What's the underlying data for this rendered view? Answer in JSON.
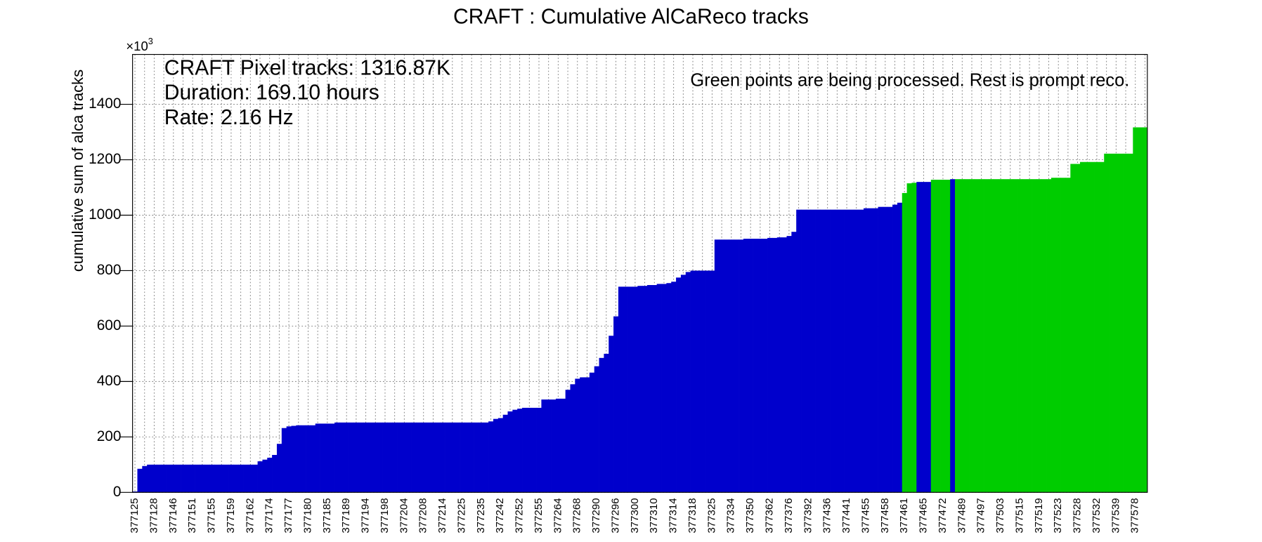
{
  "chart_data": {
    "type": "bar",
    "title": "CRAFT : Cumulative AlCaReco tracks",
    "y_label": "cumulative sum of alca tracks",
    "y_multiplier_base": "×10",
    "y_multiplier_power": "3",
    "annotations": [
      "CRAFT Pixel tracks: 1316.87K",
      "Duration: 169.10 hours",
      "Rate: 2.16 Hz"
    ],
    "note": "Green points are being processed. Rest is prompt reco.",
    "ylim": [
      0,
      1580
    ],
    "yticks": [
      0,
      200,
      400,
      600,
      800,
      1000,
      1200,
      1400
    ],
    "grid": true,
    "categories": [
      "377125",
      null,
      null,
      null,
      "377128",
      null,
      null,
      null,
      "377146",
      null,
      null,
      null,
      "377151",
      null,
      null,
      null,
      "377155",
      null,
      null,
      null,
      "377159",
      null,
      null,
      null,
      "377162",
      null,
      null,
      null,
      "377174",
      null,
      null,
      null,
      "377177",
      null,
      null,
      null,
      "377180",
      null,
      null,
      null,
      "377185",
      null,
      null,
      null,
      "377189",
      null,
      null,
      null,
      "377194",
      null,
      null,
      null,
      "377198",
      null,
      null,
      null,
      "377204",
      null,
      null,
      null,
      "377208",
      null,
      null,
      null,
      "377214",
      null,
      null,
      null,
      "377225",
      null,
      null,
      null,
      "377235",
      null,
      null,
      null,
      "377242",
      null,
      null,
      null,
      "377252",
      null,
      null,
      null,
      "377255",
      null,
      null,
      null,
      "377264",
      null,
      null,
      null,
      "377268",
      null,
      null,
      null,
      "377290",
      null,
      null,
      null,
      "377296",
      null,
      null,
      null,
      "377300",
      null,
      null,
      null,
      "377310",
      null,
      null,
      null,
      "377314",
      null,
      null,
      null,
      "377318",
      null,
      null,
      null,
      "377325",
      null,
      null,
      null,
      "377334",
      null,
      null,
      null,
      "377350",
      null,
      null,
      null,
      "377362",
      null,
      null,
      null,
      "377376",
      null,
      null,
      null,
      "377392",
      null,
      null,
      null,
      "377436",
      null,
      null,
      null,
      "377441",
      null,
      null,
      null,
      "377455",
      null,
      null,
      null,
      "377458",
      null,
      null,
      null,
      "377461",
      null,
      null,
      null,
      "377465",
      null,
      null,
      null,
      "377472",
      null,
      null,
      null,
      "377489",
      null,
      null,
      null,
      "377497",
      null,
      null,
      null,
      "377503",
      null,
      null,
      null,
      "377515",
      null,
      null,
      null,
      "377519",
      null,
      null,
      null,
      "377523",
      null,
      null,
      null,
      "377528",
      null,
      null,
      null,
      "377532",
      null,
      null,
      null,
      "377539",
      null,
      null,
      null,
      "377578",
      null,
      null
    ],
    "values": [
      3,
      85,
      95,
      100,
      100,
      100,
      100,
      100,
      100,
      100,
      100,
      100,
      100,
      100,
      100,
      100,
      100,
      100,
      100,
      100,
      100,
      100,
      100,
      100,
      100,
      100,
      112,
      118,
      125,
      135,
      175,
      232,
      238,
      240,
      242,
      242,
      242,
      242,
      248,
      248,
      248,
      248,
      252,
      252,
      252,
      252,
      252,
      252,
      252,
      252,
      252,
      252,
      252,
      252,
      252,
      252,
      252,
      252,
      252,
      252,
      252,
      252,
      252,
      252,
      252,
      252,
      252,
      252,
      252,
      252,
      252,
      252,
      252,
      252,
      256,
      265,
      268,
      280,
      292,
      298,
      302,
      305,
      305,
      305,
      305,
      335,
      335,
      335,
      338,
      338,
      370,
      390,
      410,
      415,
      415,
      432,
      455,
      485,
      500,
      565,
      635,
      742,
      742,
      742,
      742,
      745,
      745,
      748,
      748,
      752,
      752,
      755,
      760,
      775,
      785,
      795,
      800,
      800,
      800,
      800,
      800,
      912,
      912,
      912,
      912,
      912,
      912,
      915,
      915,
      915,
      915,
      915,
      918,
      918,
      920,
      920,
      925,
      940,
      1020,
      1020,
      1020,
      1020,
      1020,
      1020,
      1020,
      1020,
      1020,
      1020,
      1020,
      1020,
      1020,
      1020,
      1025,
      1025,
      1025,
      1030,
      1030,
      1030,
      1038,
      1045,
      1080,
      1115,
      1117,
      1120,
      1120,
      1120,
      1128,
      1128,
      1128,
      1128,
      1130,
      1130,
      1130,
      1130,
      1130,
      1130,
      1130,
      1130,
      1130,
      1130,
      1130,
      1130,
      1130,
      1130,
      1130,
      1130,
      1130,
      1130,
      1130,
      1130,
      1130,
      1135,
      1135,
      1135,
      1135,
      1185,
      1185,
      1192,
      1192,
      1192,
      1192,
      1192,
      1222,
      1222,
      1222,
      1222,
      1222,
      1222,
      1316.87,
      1316.87,
      1316.87
    ],
    "colors": [
      "#0000cc",
      "#0000cc",
      "#0000cc",
      "#0000cc",
      "#0000cc",
      "#0000cc",
      "#0000cc",
      "#0000cc",
      "#0000cc",
      "#0000cc",
      "#0000cc",
      "#0000cc",
      "#0000cc",
      "#0000cc",
      "#0000cc",
      "#0000cc",
      "#0000cc",
      "#0000cc",
      "#0000cc",
      "#0000cc",
      "#0000cc",
      "#0000cc",
      "#0000cc",
      "#0000cc",
      "#0000cc",
      "#0000cc",
      "#0000cc",
      "#0000cc",
      "#0000cc",
      "#0000cc",
      "#0000cc",
      "#0000cc",
      "#0000cc",
      "#0000cc",
      "#0000cc",
      "#0000cc",
      "#0000cc",
      "#0000cc",
      "#0000cc",
      "#0000cc",
      "#0000cc",
      "#0000cc",
      "#0000cc",
      "#0000cc",
      "#0000cc",
      "#0000cc",
      "#0000cc",
      "#0000cc",
      "#0000cc",
      "#0000cc",
      "#0000cc",
      "#0000cc",
      "#0000cc",
      "#0000cc",
      "#0000cc",
      "#0000cc",
      "#0000cc",
      "#0000cc",
      "#0000cc",
      "#0000cc",
      "#0000cc",
      "#0000cc",
      "#0000cc",
      "#0000cc",
      "#0000cc",
      "#0000cc",
      "#0000cc",
      "#0000cc",
      "#0000cc",
      "#0000cc",
      "#0000cc",
      "#0000cc",
      "#0000cc",
      "#0000cc",
      "#0000cc",
      "#0000cc",
      "#0000cc",
      "#0000cc",
      "#0000cc",
      "#0000cc",
      "#0000cc",
      "#0000cc",
      "#0000cc",
      "#0000cc",
      "#0000cc",
      "#0000cc",
      "#0000cc",
      "#0000cc",
      "#0000cc",
      "#0000cc",
      "#0000cc",
      "#0000cc",
      "#0000cc",
      "#0000cc",
      "#0000cc",
      "#0000cc",
      "#0000cc",
      "#0000cc",
      "#0000cc",
      "#0000cc",
      "#0000cc",
      "#0000cc",
      "#0000cc",
      "#0000cc",
      "#0000cc",
      "#0000cc",
      "#0000cc",
      "#0000cc",
      "#0000cc",
      "#0000cc",
      "#0000cc",
      "#0000cc",
      "#0000cc",
      "#0000cc",
      "#0000cc",
      "#0000cc",
      "#0000cc",
      "#0000cc",
      "#0000cc",
      "#0000cc",
      "#0000cc",
      "#0000cc",
      "#0000cc",
      "#0000cc",
      "#0000cc",
      "#0000cc",
      "#0000cc",
      "#0000cc",
      "#0000cc",
      "#0000cc",
      "#0000cc",
      "#0000cc",
      "#0000cc",
      "#0000cc",
      "#0000cc",
      "#0000cc",
      "#0000cc",
      "#0000cc",
      "#0000cc",
      "#0000cc",
      "#0000cc",
      "#0000cc",
      "#0000cc",
      "#0000cc",
      "#0000cc",
      "#0000cc",
      "#0000cc",
      "#0000cc",
      "#0000cc",
      "#0000cc",
      "#0000cc",
      "#0000cc",
      "#0000cc",
      "#0000cc",
      "#0000cc",
      "#0000cc",
      "#0000cc",
      "#0000cc",
      "#0000cc",
      "#0000cc",
      "#00cc00",
      "#00cc00",
      "#00cc00",
      "#0000cc",
      "#0000cc",
      "#0000cc",
      "#00cc00",
      "#00cc00",
      "#00cc00",
      "#00cc00",
      "#0000cc",
      "#00cc00",
      "#00cc00",
      "#00cc00",
      "#00cc00",
      "#00cc00",
      "#00cc00",
      "#00cc00",
      "#00cc00",
      "#00cc00",
      "#00cc00",
      "#00cc00",
      "#00cc00",
      "#00cc00",
      "#00cc00",
      "#00cc00",
      "#00cc00",
      "#00cc00",
      "#00cc00",
      "#00cc00",
      "#00cc00",
      "#00cc00",
      "#00cc00",
      "#00cc00",
      "#00cc00",
      "#00cc00",
      "#00cc00",
      "#00cc00",
      "#00cc00",
      "#00cc00",
      "#00cc00",
      "#00cc00",
      "#00cc00",
      "#00cc00",
      "#00cc00",
      "#00cc00",
      "#00cc00",
      "#00cc00",
      "#00cc00",
      "#00cc00",
      "#00cc00"
    ]
  }
}
